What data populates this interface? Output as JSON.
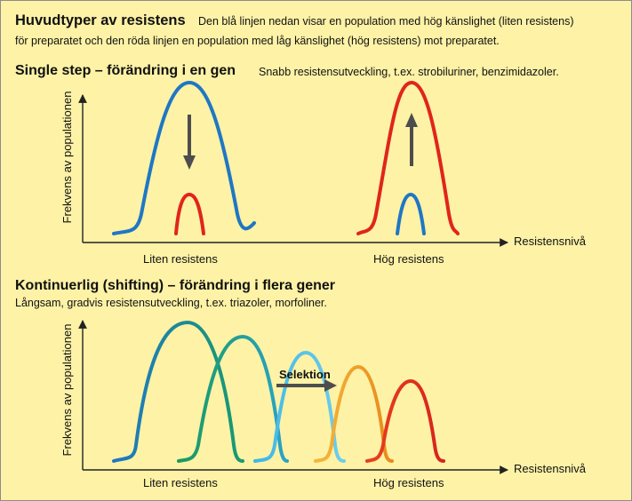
{
  "header": {
    "title": "Huvudtyper av resistens",
    "line1": "Den blå linjen nedan visar en population med hög känslighet (liten resistens)",
    "line2": "för preparatet och den röda linjen en population med låg känslighet (hög resistens) mot preparatet."
  },
  "section1": {
    "title": "Single step – förändring i en gen",
    "subtitle": "Snabb resistensutveckling, t.ex. strobiluriner, benzimidazoler.",
    "y_axis_label": "Frekvens av populationen",
    "x_axis_label": "Resistensnivå",
    "left_label": "Liten resistens",
    "right_label": "Hög resistens"
  },
  "section2": {
    "title": "Kontinuerlig (shifting) – förändring i flera gener",
    "subtitle": "Långsam, gradvis resistensutveckling, t.ex. triazoler, morfoliner.",
    "y_axis_label": "Frekvens av populationen",
    "x_axis_label": "Resistensnivå",
    "left_label": "Liten resistens",
    "right_label": "Hög resistens",
    "selection_label": "Selektion"
  },
  "colors": {
    "background": "#fdf2a6",
    "blue": "#1f77c4",
    "red": "#e0251b",
    "teal": "#17a08f",
    "cyan": "#45bde6",
    "orange": "#f0a324",
    "arrow": "#4d4d4d"
  }
}
